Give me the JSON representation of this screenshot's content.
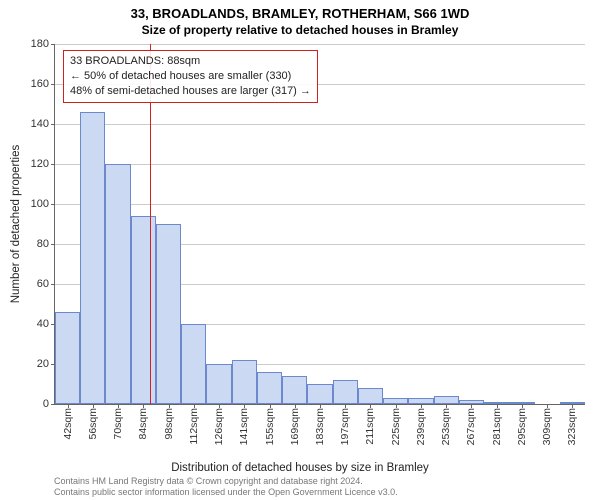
{
  "title": {
    "line1": "33, BROADLANDS, BRAMLEY, ROTHERHAM, S66 1WD",
    "line2": "Size of property relative to detached houses in Bramley"
  },
  "chart": {
    "type": "histogram",
    "ylabel": "Number of detached properties",
    "xlabel": "Distribution of detached houses by size in Bramley",
    "ylim": [
      0,
      180
    ],
    "ytick_step": 20,
    "yticks": [
      0,
      20,
      40,
      60,
      80,
      100,
      120,
      140,
      160,
      180
    ],
    "xticks": [
      "42sqm",
      "56sqm",
      "70sqm",
      "84sqm",
      "98sqm",
      "112sqm",
      "126sqm",
      "141sqm",
      "155sqm",
      "169sqm",
      "183sqm",
      "197sqm",
      "211sqm",
      "225sqm",
      "239sqm",
      "253sqm",
      "267sqm",
      "281sqm",
      "295sqm",
      "309sqm",
      "323sqm"
    ],
    "bar_color": "#ccd9f2",
    "bar_border_color": "#6b89cc",
    "grid_color": "#cccccc",
    "background_color": "#ffffff",
    "axis_color": "#666666",
    "values": [
      46,
      146,
      120,
      94,
      90,
      40,
      20,
      22,
      16,
      14,
      10,
      12,
      8,
      3,
      3,
      4,
      2,
      1,
      1,
      0,
      1
    ],
    "annotation": {
      "lines": [
        "33 BROADLANDS: 88sqm",
        "← 50% of detached houses are smaller (330)",
        "48% of semi-detached houses are larger (317) →"
      ],
      "box_border_color": "#d02020",
      "line_color": "#d02020",
      "x_value_sqm": 88
    }
  },
  "attribution": {
    "line1": "Contains HM Land Registry data © Crown copyright and database right 2024.",
    "line2": "Contains public sector information licensed under the Open Government Licence v3.0."
  }
}
